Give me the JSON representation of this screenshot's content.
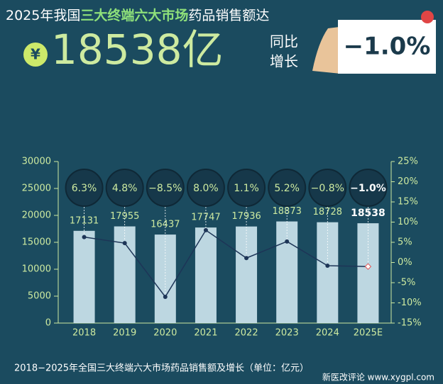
{
  "header": {
    "title_prefix": "2025年我国",
    "title_highlight": "三大终端六大市场",
    "title_suffix": "药品销售额达",
    "currency": "¥",
    "amount": "18538亿",
    "yoy_label_1": "同比",
    "yoy_label_2": "增长",
    "yoy_value": "−1.0%"
  },
  "chart_data": {
    "type": "bar",
    "categories": [
      "2018",
      "2019",
      "2020",
      "2021",
      "2022",
      "2023",
      "2024",
      "2025E"
    ],
    "series": [
      {
        "type": "bar",
        "color": "#cfe7f0",
        "values": [
          17131,
          17955,
          16437,
          17747,
          17936,
          18873,
          18728,
          18538
        ]
      },
      {
        "type": "line",
        "axis": "y2",
        "color": "#1d3557",
        "values": [
          6.3,
          4.8,
          -8.5,
          8.0,
          1.1,
          5.2,
          -0.8,
          -1.0
        ],
        "value_labels": [
          "6.3%",
          "4.8%",
          "−8.5%",
          "8.0%",
          "1.1%",
          "5.2%",
          "−0.8%",
          "−1.0%"
        ]
      }
    ],
    "ylim": [
      0,
      30000
    ],
    "yticks": [
      0,
      5000,
      10000,
      15000,
      20000,
      25000,
      30000
    ],
    "y2lim": [
      -15,
      25
    ],
    "y2ticks": [
      {
        "value": -15,
        "label": "-15%"
      },
      {
        "value": -10,
        "label": "-10%"
      },
      {
        "value": -5,
        "label": "-5%"
      },
      {
        "value": 0,
        "label": "0%"
      },
      {
        "value": 5,
        "label": "5%"
      },
      {
        "value": 10,
        "label": "10%"
      },
      {
        "value": 15,
        "label": "15%"
      },
      {
        "value": 20,
        "label": "20%"
      },
      {
        "value": 25,
        "label": "25%"
      }
    ]
  },
  "footer": {
    "caption": "2018−2025年全国三大终端六大市场药品销售额及增长（单位：亿元）",
    "watermark": "新医改评论 www.xygpl.com"
  }
}
